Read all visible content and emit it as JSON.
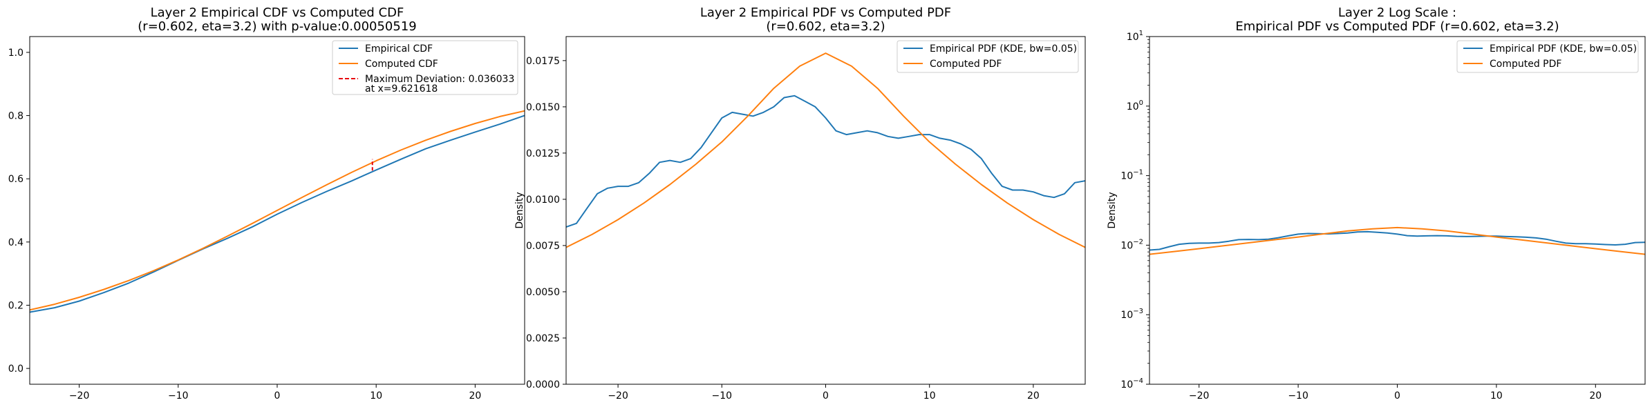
{
  "colors": {
    "empirical": "#1f77b4",
    "computed": "#ff7f0e",
    "deviation": "#e8000b"
  },
  "chart_data": [
    {
      "type": "line",
      "title_line1": "Layer 2 Empirical CDF vs Computed CDF",
      "title_line2": "(r=0.602, eta=3.2) with p-value:0.00050519",
      "xlabel": "",
      "ylabel": "",
      "xlim": [
        -25,
        25
      ],
      "ylim": [
        -0.05,
        1.05
      ],
      "yscale": "linear",
      "xticks": [
        -20,
        -10,
        0,
        10,
        20
      ],
      "xtick_labels": [
        "−20",
        "−10",
        "0",
        "10",
        "20"
      ],
      "yticks": [
        0.0,
        0.2,
        0.4,
        0.6,
        0.8,
        1.0
      ],
      "ytick_labels": [
        "0.0",
        "0.2",
        "0.4",
        "0.6",
        "0.8",
        "1.0"
      ],
      "legend_position": "top-right",
      "legend": [
        "Empirical CDF",
        "Computed CDF",
        "Maximum Deviation: 0.036033",
        "at x=9.621618"
      ],
      "series": [
        {
          "name": "Empirical CDF",
          "color_key": "empirical",
          "x": [
            -25,
            -22.5,
            -20,
            -17.5,
            -15,
            -12.5,
            -10,
            -7.5,
            -5,
            -2.5,
            0,
            2.5,
            5,
            7.5,
            10,
            12.5,
            15,
            17.5,
            20,
            22.5,
            25
          ],
          "y": [
            0.178,
            0.192,
            0.213,
            0.24,
            0.27,
            0.305,
            0.342,
            0.378,
            0.412,
            0.448,
            0.488,
            0.525,
            0.56,
            0.593,
            0.628,
            0.662,
            0.695,
            0.722,
            0.748,
            0.773,
            0.8
          ]
        },
        {
          "name": "Computed CDF",
          "color_key": "computed",
          "x": [
            -25,
            -22.5,
            -20,
            -17.5,
            -15,
            -12.5,
            -10,
            -7.5,
            -5,
            -2.5,
            0,
            2.5,
            5,
            7.5,
            10,
            12.5,
            15,
            17.5,
            20,
            22.5,
            25
          ],
          "y": [
            0.185,
            0.203,
            0.225,
            0.25,
            0.278,
            0.309,
            0.343,
            0.38,
            0.419,
            0.459,
            0.5,
            0.541,
            0.581,
            0.62,
            0.657,
            0.691,
            0.722,
            0.75,
            0.775,
            0.797,
            0.815
          ]
        }
      ],
      "deviation": {
        "x": 9.621618,
        "y1": 0.626,
        "y2": 0.662
      }
    },
    {
      "type": "line",
      "title_line1": "Layer 2 Empirical PDF vs Computed PDF",
      "title_line2": "(r=0.602, eta=3.2)",
      "xlabel": "",
      "ylabel": "Density",
      "xlim": [
        -25,
        25
      ],
      "ylim": [
        0,
        0.0188
      ],
      "yscale": "linear",
      "xticks": [
        -20,
        -10,
        0,
        10,
        20
      ],
      "xtick_labels": [
        "−20",
        "−10",
        "0",
        "10",
        "20"
      ],
      "yticks": [
        0,
        0.0025,
        0.005,
        0.0075,
        0.01,
        0.0125,
        0.015,
        0.0175
      ],
      "ytick_labels": [
        "0.0000",
        "0.0025",
        "0.0050",
        "0.0075",
        "0.0100",
        "0.0125",
        "0.0150",
        "0.0175"
      ],
      "legend_position": "top-right",
      "legend": [
        "Empirical PDF (KDE, bw=0.05)",
        "Computed PDF"
      ],
      "series": [
        {
          "name": "Empirical PDF (KDE, bw=0.05)",
          "color_key": "empirical",
          "x": [
            -25,
            -24,
            -23,
            -22,
            -21,
            -20,
            -19,
            -18,
            -17,
            -16,
            -15,
            -14,
            -13,
            -12,
            -11,
            -10,
            -9,
            -8,
            -7,
            -6,
            -5,
            -4,
            -3,
            -2,
            -1,
            0,
            1,
            2,
            3,
            4,
            5,
            6,
            7,
            8,
            9,
            10,
            11,
            12,
            13,
            14,
            15,
            16,
            17,
            18,
            19,
            20,
            21,
            22,
            23,
            24,
            25
          ],
          "y": [
            0.0085,
            0.0087,
            0.0095,
            0.0103,
            0.0106,
            0.0107,
            0.0107,
            0.0109,
            0.0114,
            0.012,
            0.0121,
            0.012,
            0.0122,
            0.0128,
            0.0136,
            0.0144,
            0.0147,
            0.0146,
            0.0145,
            0.0147,
            0.015,
            0.0155,
            0.0156,
            0.0153,
            0.015,
            0.0144,
            0.0137,
            0.0135,
            0.0136,
            0.0137,
            0.0136,
            0.0134,
            0.0133,
            0.0134,
            0.0135,
            0.0135,
            0.0133,
            0.0132,
            0.013,
            0.0127,
            0.0122,
            0.0114,
            0.0107,
            0.0105,
            0.0105,
            0.0104,
            0.0102,
            0.0101,
            0.0103,
            0.0109,
            0.011
          ]
        },
        {
          "name": "Computed PDF",
          "color_key": "computed",
          "x": [
            -25,
            -22.5,
            -20,
            -17.5,
            -15,
            -12.5,
            -10,
            -7.5,
            -5,
            -2.5,
            0,
            2.5,
            5,
            7.5,
            10,
            12.5,
            15,
            17.5,
            20,
            22.5,
            25
          ],
          "y": [
            0.0074,
            0.0081,
            0.0089,
            0.0098,
            0.0108,
            0.0119,
            0.0131,
            0.0145,
            0.016,
            0.0172,
            0.0179,
            0.0172,
            0.016,
            0.0145,
            0.0131,
            0.0119,
            0.0108,
            0.0098,
            0.0089,
            0.0081,
            0.0074
          ]
        }
      ]
    },
    {
      "type": "line",
      "title_line1": "Layer 2 Log Scale :",
      "title_line2": "Empirical PDF vs Computed PDF (r=0.602, eta=3.2)",
      "xlabel": "",
      "ylabel": "Density",
      "xlim": [
        -25,
        25
      ],
      "ylim": [
        0.0001,
        10
      ],
      "yscale": "log",
      "xticks": [
        -20,
        -10,
        0,
        10,
        20
      ],
      "xtick_labels": [
        "−20",
        "−10",
        "0",
        "10",
        "20"
      ],
      "yticks": [
        0.0001,
        0.001,
        0.01,
        0.1,
        1,
        10
      ],
      "ytick_labels": [
        [
          "10",
          "−4"
        ],
        [
          "10",
          "−3"
        ],
        [
          "10",
          "−2"
        ],
        [
          "10",
          "−1"
        ],
        [
          "10",
          "0"
        ],
        [
          "10",
          "1"
        ]
      ],
      "legend_position": "top-right",
      "legend": [
        "Empirical PDF (KDE, bw=0.05)",
        "Computed PDF"
      ],
      "series": [
        {
          "name": "Empirical PDF (KDE, bw=0.05)",
          "color_key": "empirical",
          "x": [
            -25,
            -24,
            -23,
            -22,
            -21,
            -20,
            -19,
            -18,
            -17,
            -16,
            -15,
            -14,
            -13,
            -12,
            -11,
            -10,
            -9,
            -8,
            -7,
            -6,
            -5,
            -4,
            -3,
            -2,
            -1,
            0,
            1,
            2,
            3,
            4,
            5,
            6,
            7,
            8,
            9,
            10,
            11,
            12,
            13,
            14,
            15,
            16,
            17,
            18,
            19,
            20,
            21,
            22,
            23,
            24,
            25
          ],
          "y": [
            0.0085,
            0.0087,
            0.0095,
            0.0103,
            0.0106,
            0.0107,
            0.0107,
            0.0109,
            0.0114,
            0.012,
            0.0121,
            0.012,
            0.0122,
            0.0128,
            0.0136,
            0.0144,
            0.0147,
            0.0146,
            0.0145,
            0.0147,
            0.015,
            0.0155,
            0.0156,
            0.0153,
            0.015,
            0.0144,
            0.0137,
            0.0135,
            0.0136,
            0.0137,
            0.0136,
            0.0134,
            0.0133,
            0.0134,
            0.0135,
            0.0135,
            0.0133,
            0.0132,
            0.013,
            0.0127,
            0.0122,
            0.0114,
            0.0107,
            0.0105,
            0.0105,
            0.0104,
            0.0102,
            0.0101,
            0.0103,
            0.0109,
            0.011
          ]
        },
        {
          "name": "Computed PDF",
          "color_key": "computed",
          "x": [
            -25,
            -22.5,
            -20,
            -17.5,
            -15,
            -12.5,
            -10,
            -7.5,
            -5,
            -2.5,
            0,
            2.5,
            5,
            7.5,
            10,
            12.5,
            15,
            17.5,
            20,
            22.5,
            25
          ],
          "y": [
            0.0074,
            0.0081,
            0.0089,
            0.0098,
            0.0108,
            0.0119,
            0.0131,
            0.0145,
            0.016,
            0.0172,
            0.0179,
            0.0172,
            0.016,
            0.0145,
            0.0131,
            0.0119,
            0.0108,
            0.0098,
            0.0089,
            0.0081,
            0.0074
          ]
        }
      ]
    }
  ]
}
